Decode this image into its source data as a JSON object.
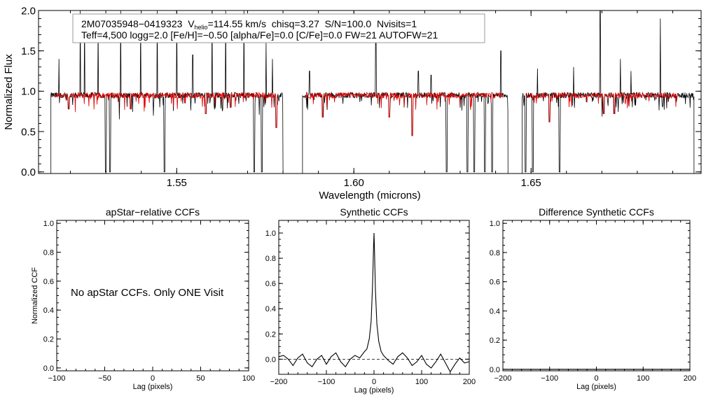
{
  "chart_data": [
    {
      "type": "line",
      "id": "spectrum",
      "xlabel": "Wavelength (microns)",
      "ylabel": "Normalized Flux",
      "xlim": [
        1.511,
        1.698
      ],
      "ylim": [
        -0.02,
        2.0
      ],
      "xticks": [
        1.55,
        1.6,
        1.65
      ],
      "xtick_labels": [
        "1.55",
        "1.60",
        "1.65"
      ],
      "yticks": [
        0.0,
        0.5,
        1.0,
        1.5,
        2.0
      ],
      "ytick_labels": [
        "0.0",
        "0.5",
        "1.0",
        "1.5",
        "2.0"
      ],
      "chips": [
        [
          1.5145,
          1.58
        ],
        [
          1.5855,
          1.6435
        ],
        [
          1.6475,
          1.696
        ]
      ],
      "continuum_level": 0.95,
      "series": [
        {
          "name": "observed apStar spectrum",
          "color": "#000000"
        },
        {
          "name": "best-fit synthetic spectrum",
          "color": "#e00000"
        }
      ],
      "dips": [
        {
          "x": 1.5195,
          "y": 0.78
        },
        {
          "x": 1.53,
          "y": 0.0
        },
        {
          "x": 1.5312,
          "y": 0.0
        },
        {
          "x": 1.537,
          "y": 0.78
        },
        {
          "x": 1.5465,
          "y": 0.0
        },
        {
          "x": 1.5582,
          "y": 0.72
        },
        {
          "x": 1.5652,
          "y": 0.8
        },
        {
          "x": 1.5718,
          "y": 0.0
        },
        {
          "x": 1.574,
          "y": 0.0
        },
        {
          "x": 1.5781,
          "y": 0.55
        },
        {
          "x": 1.5912,
          "y": 0.68
        },
        {
          "x": 1.61,
          "y": 0.68
        },
        {
          "x": 1.6165,
          "y": 0.45
        },
        {
          "x": 1.6262,
          "y": 0.0
        },
        {
          "x": 1.632,
          "y": 0.0
        },
        {
          "x": 1.634,
          "y": 0.0
        },
        {
          "x": 1.637,
          "y": 0.0
        },
        {
          "x": 1.639,
          "y": 0.0
        },
        {
          "x": 1.6485,
          "y": 0.0
        },
        {
          "x": 1.6505,
          "y": 0.0
        },
        {
          "x": 1.6552,
          "y": 0.62
        },
        {
          "x": 1.658,
          "y": 0.0
        },
        {
          "x": 1.6705,
          "y": 0.72
        },
        {
          "x": 1.6735,
          "y": 0.72
        }
      ],
      "spikes": [
        {
          "x": 1.5168,
          "y": 1.4
        },
        {
          "x": 1.5228,
          "y": 2.0
        },
        {
          "x": 1.524,
          "y": 1.9
        },
        {
          "x": 1.5278,
          "y": 1.8
        },
        {
          "x": 1.5342,
          "y": 2.0
        },
        {
          "x": 1.5398,
          "y": 1.9
        },
        {
          "x": 1.5445,
          "y": 2.0
        },
        {
          "x": 1.55,
          "y": 2.0
        },
        {
          "x": 1.5545,
          "y": 1.45
        },
        {
          "x": 1.56,
          "y": 2.0
        },
        {
          "x": 1.5638,
          "y": 2.0
        },
        {
          "x": 1.569,
          "y": 2.0
        },
        {
          "x": 1.5752,
          "y": 1.6
        },
        {
          "x": 1.577,
          "y": 1.4
        },
        {
          "x": 1.5875,
          "y": 1.25
        },
        {
          "x": 1.6062,
          "y": 1.8
        },
        {
          "x": 1.6182,
          "y": 1.25
        },
        {
          "x": 1.6218,
          "y": 1.2
        },
        {
          "x": 1.6415,
          "y": 1.5
        },
        {
          "x": 1.6518,
          "y": 1.28
        },
        {
          "x": 1.662,
          "y": 1.3
        },
        {
          "x": 1.6695,
          "y": 2.0
        },
        {
          "x": 1.6752,
          "y": 1.4
        },
        {
          "x": 1.6782,
          "y": 1.25
        },
        {
          "x": 1.6865,
          "y": 1.9
        }
      ],
      "annotation": {
        "line1": {
          "id": "2M07035948−0419323",
          "v_symbol": "V",
          "v_subscript": "helio",
          "v_value": "=114.55 km/s",
          "rest": "chisq=3.27  S/N=100.0  Nvisits=1"
        },
        "line2": "Teff=4,500 logg=2.0 [Fe/H]=−0.50 [alpha/Fe]=0.0 [C/Fe]=0.0 FW=21 AUTOFW=21"
      }
    },
    {
      "type": "line",
      "id": "ccf_apstar",
      "title": "apStar−relative CCFs",
      "xlabel": "Lag (pixels)",
      "ylabel": "Normalized CCF",
      "xlim": [
        -100,
        100
      ],
      "ylim": [
        -0.02,
        1.02
      ],
      "xticks": [
        -100,
        -50,
        0,
        50,
        100
      ],
      "xtick_labels": [
        "−100",
        "−50",
        "0",
        "50",
        "100"
      ],
      "yticks": [
        0.0,
        0.2,
        0.4,
        0.6,
        0.8,
        1.0
      ],
      "ytick_labels": [
        "0.0",
        "0.2",
        "0.4",
        "0.6",
        "0.8",
        "1.0"
      ],
      "message": "No apStar CCFs.  Only ONE Visit",
      "series": []
    },
    {
      "type": "line",
      "id": "ccf_synthetic",
      "title": "Synthetic CCFs",
      "xlabel": "Lag (pixels)",
      "ylabel": "",
      "xlim": [
        -200,
        200
      ],
      "ylim": [
        -0.12,
        1.1
      ],
      "xticks": [
        -200,
        -100,
        0,
        100,
        200
      ],
      "xtick_labels": [
        "−200",
        "−100",
        "0",
        "100",
        "200"
      ],
      "yticks": [
        0.0,
        0.2,
        0.4,
        0.6,
        0.8,
        1.0
      ],
      "ytick_labels": [
        "0.0",
        "0.2",
        "0.4",
        "0.6",
        "0.8",
        "1.0"
      ],
      "baseline": 0.0,
      "series": [
        {
          "name": "synthetic CCF",
          "x": [
            -200,
            -190,
            -180,
            -170,
            -160,
            -150,
            -140,
            -130,
            -120,
            -110,
            -100,
            -90,
            -80,
            -70,
            -60,
            -50,
            -40,
            -30,
            -20,
            -15,
            -10,
            -6,
            -3,
            -1,
            0,
            1,
            3,
            6,
            10,
            15,
            20,
            30,
            40,
            50,
            60,
            70,
            80,
            90,
            100,
            110,
            120,
            130,
            140,
            150,
            160,
            170,
            180,
            190,
            200
          ],
          "y": [
            0.02,
            0.03,
            0.0,
            -0.05,
            0.01,
            0.04,
            -0.03,
            -0.06,
            0.0,
            0.03,
            -0.04,
            0.02,
            0.05,
            -0.02,
            -0.06,
            0.0,
            0.03,
            0.01,
            0.06,
            0.08,
            0.16,
            0.3,
            0.6,
            0.88,
            1.0,
            0.86,
            0.55,
            0.28,
            0.14,
            0.06,
            0.03,
            -0.01,
            -0.04,
            0.02,
            0.05,
            0.01,
            -0.05,
            -0.02,
            0.03,
            -0.04,
            -0.07,
            -0.02,
            0.04,
            -0.03,
            -0.1,
            -0.04,
            0.01,
            -0.03,
            -0.02
          ]
        }
      ]
    },
    {
      "type": "line",
      "id": "ccf_difference",
      "title": "Difference Synthetic CCFs",
      "xlabel": "Lag (pixels)",
      "ylabel": "",
      "xlim": [
        -200,
        200
      ],
      "ylim": [
        -0.01,
        1.02
      ],
      "xticks": [
        -200,
        -100,
        0,
        100,
        200
      ],
      "xtick_labels": [
        "−200",
        "−100",
        "0",
        "100",
        "200"
      ],
      "yticks": [
        0.0,
        0.2,
        0.4,
        0.6,
        0.8,
        1.0
      ],
      "ytick_labels": [
        "0.0",
        "0.2",
        "0.4",
        "0.6",
        "0.8",
        "1.0"
      ],
      "series": [
        {
          "name": "difference CCF",
          "x": [
            -200,
            200
          ],
          "y": [
            0.0,
            0.0
          ]
        }
      ]
    }
  ]
}
